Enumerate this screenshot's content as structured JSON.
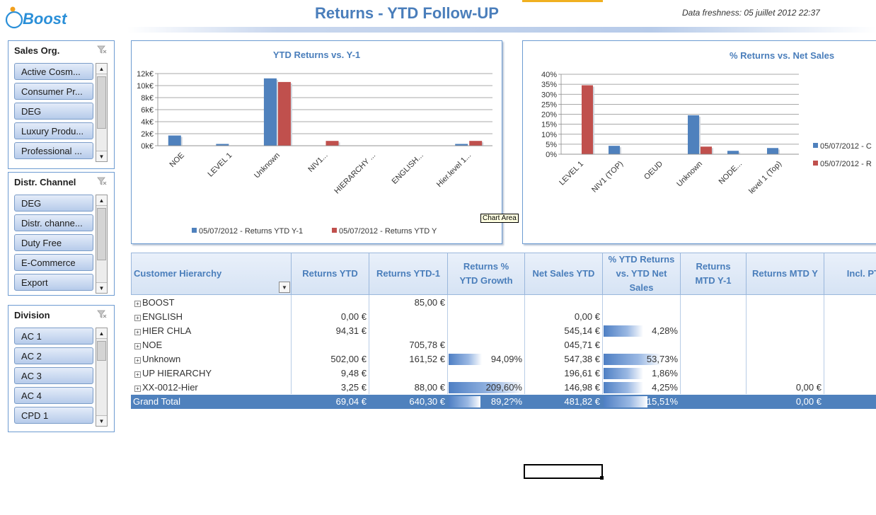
{
  "header": {
    "logo_text": "Boost",
    "title": "Returns - YTD Follow-UP",
    "freshness": "Data freshness: 05 juillet 2012 22:37"
  },
  "slicers": [
    {
      "title": "Sales Org.",
      "items": [
        "Active Cosm...",
        "Consumer Pr...",
        "DEG",
        "Luxury Produ...",
        "Professional ..."
      ]
    },
    {
      "title": "Distr. Channel",
      "items": [
        "DEG",
        "Distr. channe...",
        "Duty Free",
        "E-Commerce",
        "Export"
      ]
    },
    {
      "title": "Division",
      "items": [
        "AC 1",
        "AC 2",
        "AC 3",
        "AC 4",
        "CPD 1"
      ]
    }
  ],
  "chart_data": [
    {
      "type": "bar",
      "title": "YTD Returns vs. Y-1",
      "categories": [
        "NOE",
        "LEVEL 1",
        "Unknown",
        "NIV1...",
        "HIERARCHY ...",
        "ENGLISH...",
        "Hier.level 1..."
      ],
      "series": [
        {
          "name": "05/07/2012 - Returns YTD Y-1",
          "values": [
            1700,
            300,
            11200,
            0,
            0,
            0,
            300
          ]
        },
        {
          "name": "05/07/2012 - Returns YTD Y",
          "values": [
            0,
            0,
            10600,
            800,
            0,
            0,
            800
          ]
        }
      ],
      "ylim": [
        0,
        12000
      ],
      "yticks": [
        "0k€",
        "2k€",
        "4k€",
        "6k€",
        "8k€",
        "10k€",
        "12k€"
      ],
      "grid": true,
      "legend": "bottom"
    },
    {
      "type": "bar",
      "title": "% Returns vs. Net Sales",
      "categories": [
        "LEVEL 1",
        "NIV1 (TOP)",
        "OEUD",
        "Unknown",
        "NODE...",
        "level 1 (Top)"
      ],
      "series": [
        {
          "name": "05/07/2012 - C",
          "values": [
            0,
            4.2,
            0,
            19.5,
            1.7,
            3.1
          ]
        },
        {
          "name": "05/07/2012 - R",
          "values": [
            34.5,
            0,
            0,
            3.8,
            0,
            0
          ]
        }
      ],
      "ylim": [
        0,
        40
      ],
      "yticks": [
        "0%",
        "5%",
        "10%",
        "15%",
        "20%",
        "25%",
        "30%",
        "35%",
        "40%"
      ],
      "grid": true,
      "legend": "right"
    }
  ],
  "tooltip": "Chart Area",
  "pivot": {
    "headers": [
      "Customer Hierarchy",
      "Returns YTD",
      "Returns YTD-1",
      "Returns % YTD Growth",
      "Net Sales YTD",
      "% YTD Returns vs. YTD Net Sales",
      "Returns MTD Y-1",
      "Returns MTD Y",
      "Incl. PT"
    ],
    "rows": [
      {
        "label": "BOOST",
        "cells": [
          "",
          "85,00 €",
          "",
          "",
          "",
          "",
          "",
          ""
        ],
        "bars": [
          0,
          0
        ]
      },
      {
        "label": "ENGLISH",
        "cells": [
          "0,00 €",
          "",
          "",
          "0,00 €",
          "",
          "",
          "",
          ""
        ],
        "bars": [
          0,
          0
        ]
      },
      {
        "label": "HIER CHLA",
        "cells": [
          "94,31 €",
          "",
          "",
          "545,14 €",
          "4,28%",
          "",
          "",
          ""
        ],
        "bars": [
          0,
          4.28
        ]
      },
      {
        "label": "NOE",
        "cells": [
          "",
          "705,78 €",
          "",
          "045,71 €",
          "",
          "",
          "",
          ""
        ],
        "bars": [
          0,
          0
        ]
      },
      {
        "label": "Unknown",
        "cells": [
          "502,00 €",
          "161,52 €",
          "94,09%",
          "547,38 €",
          "53,73%",
          "",
          "",
          ""
        ],
        "bars": [
          94.09,
          53.73
        ]
      },
      {
        "label": "UP HIERARCHY",
        "cells": [
          "9,48 €",
          "",
          "",
          "196,61 €",
          "1,86%",
          "",
          "",
          ""
        ],
        "bars": [
          0,
          1.86
        ]
      },
      {
        "label": "XX-0012-Hier",
        "cells": [
          "3,25 €",
          "88,00 €",
          "209,60%",
          "146,98 €",
          "4,25%",
          "",
          "0,00 €",
          ""
        ],
        "bars": [
          209.6,
          4.25
        ]
      }
    ],
    "grand_total": {
      "label": "Grand Total",
      "cells": [
        "69,04 €",
        "640,30 €",
        "89,2?%",
        "481,82 €",
        "15,51%",
        "",
        "0,00 €",
        ""
      ],
      "bars": [
        89.2,
        15.51
      ]
    }
  },
  "colors": {
    "series1": "#4f81bd",
    "series2": "#c0504d",
    "accent": "#4a7ebb",
    "grand_total_bg": "#4f81bd"
  }
}
